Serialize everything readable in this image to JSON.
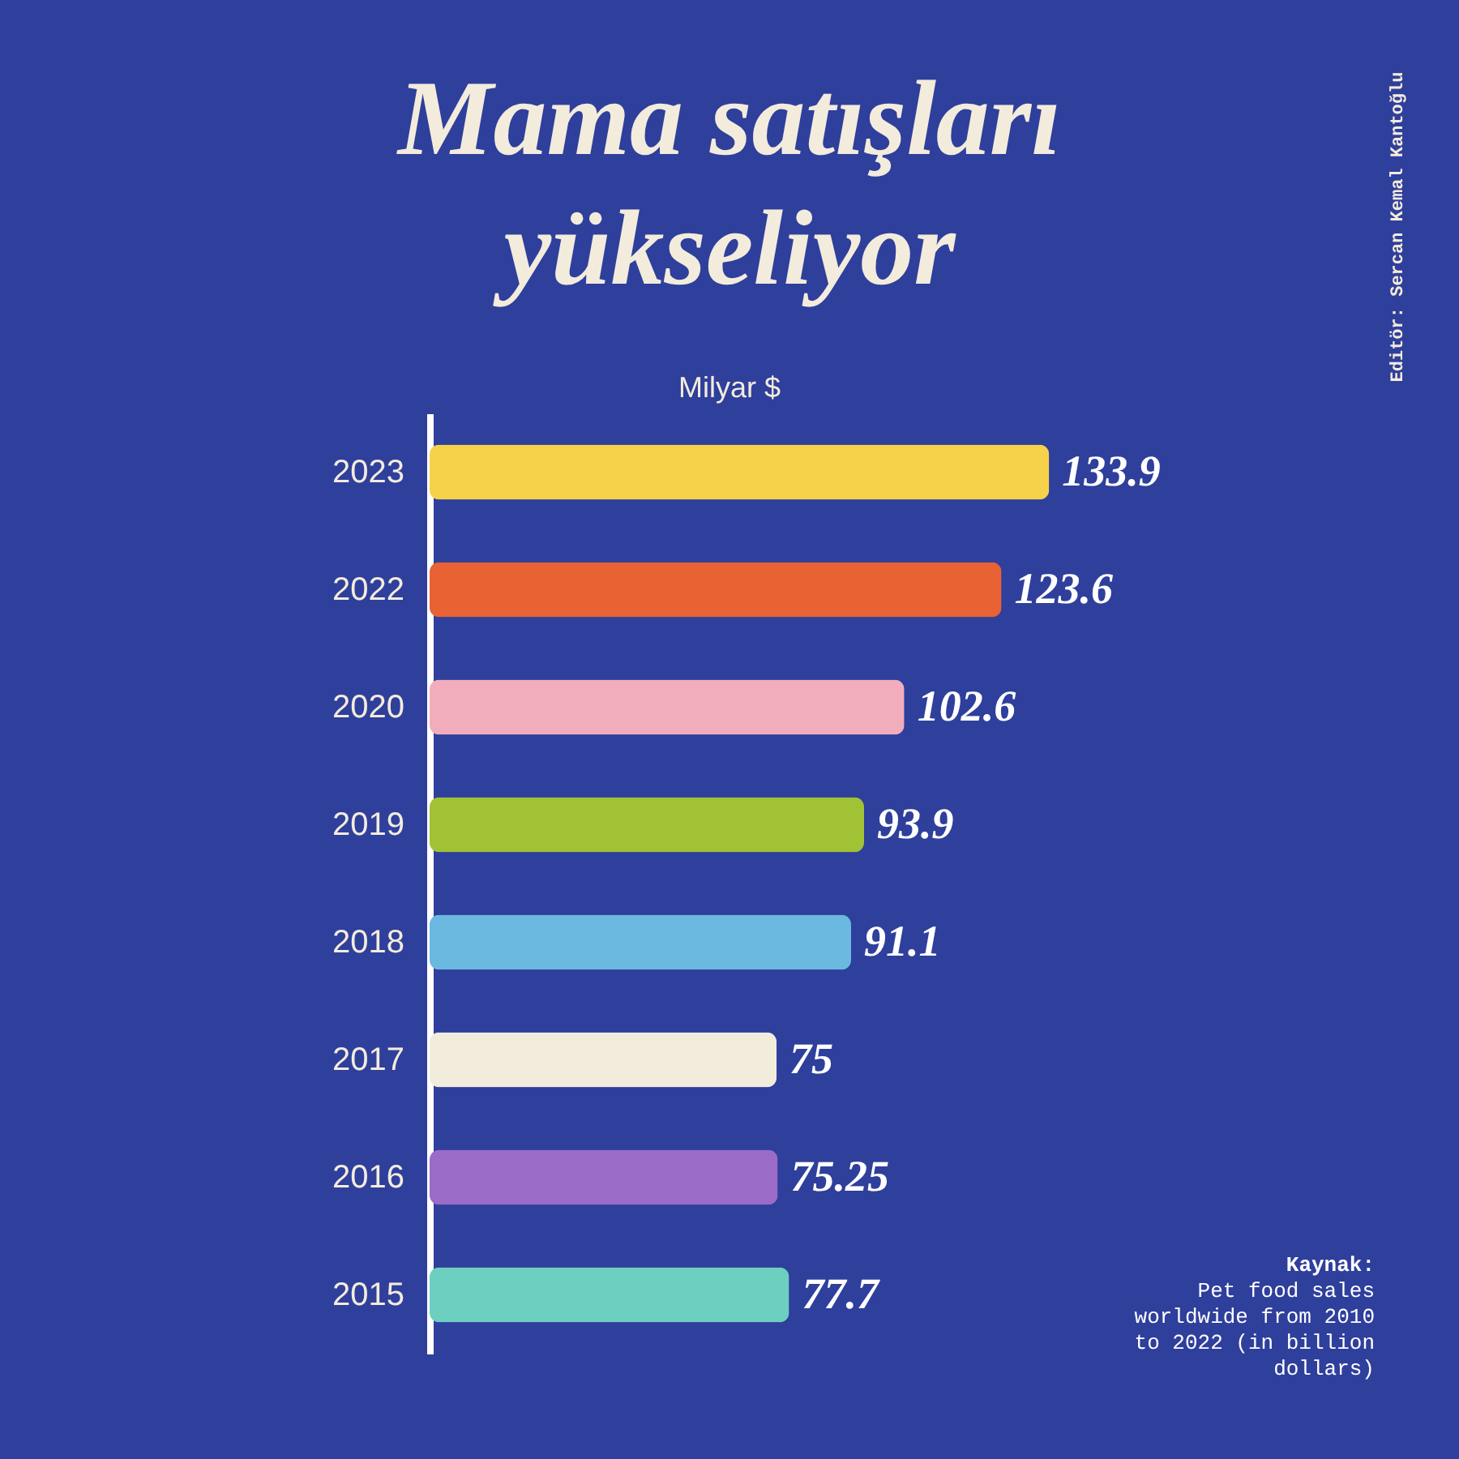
{
  "chart_data": {
    "type": "bar",
    "orientation": "horizontal",
    "title": "Mama satışları\nyükseliyor",
    "subtitle": "Milyar $",
    "categories": [
      "2023",
      "2022",
      "2020",
      "2019",
      "2018",
      "2017",
      "2016",
      "2015"
    ],
    "values": [
      133.9,
      123.6,
      102.6,
      93.9,
      91.1,
      75,
      75.25,
      77.7
    ],
    "colors": [
      "#f5d24a",
      "#e86233",
      "#f2adbd",
      "#a0c234",
      "#6bb8e0",
      "#f2ecdc",
      "#9a6bc7",
      "#6dcfc0"
    ],
    "data_labels": true,
    "grid": false,
    "annotations": [
      "Editör: Sercan Kemal Kantoğlu",
      "Kaynak:",
      "Pet food sales worldwide from 2010 to 2022 (in billion dollars)"
    ]
  }
}
